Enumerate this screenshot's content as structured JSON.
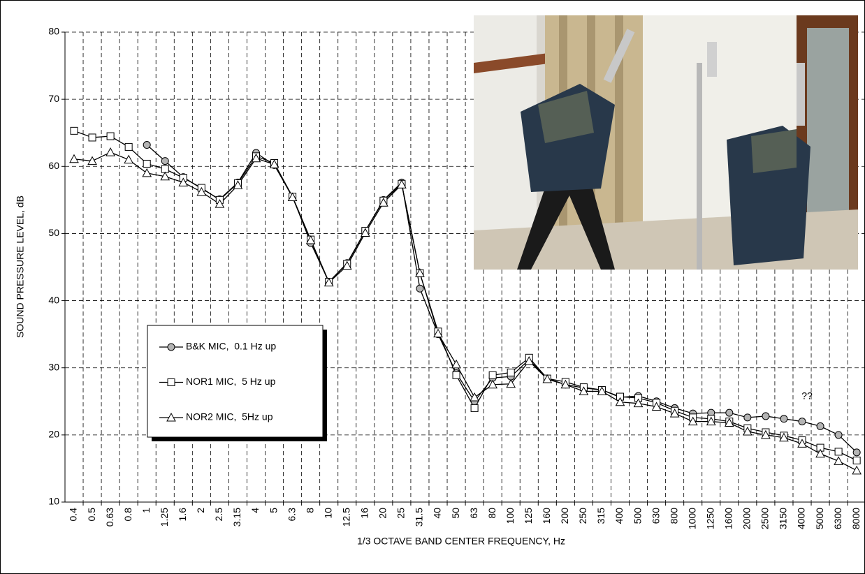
{
  "chart_data": {
    "type": "line",
    "xlabel": "1/3 OCTAVE BAND CENTER FREQUENCY, Hz",
    "ylabel": "SOUND PRESSURE LEVEL, dB",
    "annotation": "??",
    "categories": [
      "0.4",
      "0.5",
      "0.63",
      "0.8",
      "1",
      "1.25",
      "1.6",
      "2",
      "2.5",
      "3.15",
      "4",
      "5",
      "6.3",
      "8",
      "10",
      "12.5",
      "16",
      "20",
      "25",
      "31.5",
      "40",
      "50",
      "63",
      "80",
      "100",
      "125",
      "160",
      "200",
      "250",
      "315",
      "400",
      "500",
      "630",
      "800",
      "1000",
      "1250",
      "1600",
      "2000",
      "2500",
      "3150",
      "4000",
      "5000",
      "6300",
      "8000"
    ],
    "ylim": [
      10,
      80
    ],
    "yticks": [
      10,
      20,
      30,
      40,
      50,
      60,
      70,
      80
    ],
    "grid": true,
    "series": [
      {
        "name": "B&K MIC,  0.1 Hz up",
        "color": "#000000",
        "marker": "circle",
        "values": [
          null,
          null,
          null,
          null,
          63.2,
          60.8,
          58.4,
          56.7,
          55.1,
          57.6,
          62.0,
          60.2,
          55.5,
          48.6,
          42.8,
          45.6,
          50.4,
          55.0,
          57.6,
          41.8,
          35.0,
          29.2,
          25.0,
          28.5,
          28.7,
          31.2,
          28.4,
          27.5,
          27.0,
          26.7,
          25.6,
          25.8,
          25.0,
          24.0,
          23.2,
          23.3,
          23.3,
          22.6,
          22.8,
          22.4,
          22.0,
          21.3,
          20.0,
          17.4
        ]
      },
      {
        "name": "NOR1 MIC,  5 Hz up",
        "color": "#000000",
        "marker": "square",
        "values": [
          65.3,
          64.3,
          64.5,
          62.9,
          60.4,
          59.6,
          58.3,
          56.8,
          55.0,
          57.5,
          61.5,
          60.5,
          55.5,
          49.1,
          42.8,
          45.5,
          50.4,
          54.9,
          57.4,
          44.1,
          35.4,
          28.9,
          24.0,
          28.9,
          29.3,
          31.5,
          28.4,
          27.9,
          27.1,
          26.7,
          25.7,
          25.5,
          24.8,
          23.6,
          22.6,
          22.4,
          22.0,
          21.0,
          20.4,
          19.9,
          19.2,
          18.1,
          17.5,
          16.2
        ]
      },
      {
        "name": "NOR2 MIC,  5Hz up",
        "color": "#000000",
        "marker": "triangle",
        "values": [
          61.1,
          60.8,
          62.1,
          61.0,
          59.0,
          58.5,
          57.6,
          56.2,
          54.4,
          57.2,
          61.2,
          60.3,
          55.4,
          49.0,
          42.7,
          45.2,
          50.1,
          54.6,
          57.3,
          44.1,
          35.1,
          30.5,
          25.6,
          27.5,
          27.6,
          31.0,
          28.3,
          27.5,
          26.5,
          26.5,
          24.9,
          24.7,
          24.2,
          23.2,
          22.0,
          22.0,
          21.8,
          20.5,
          20.0,
          19.6,
          18.7,
          17.2,
          16.1,
          14.7
        ]
      }
    ]
  }
}
